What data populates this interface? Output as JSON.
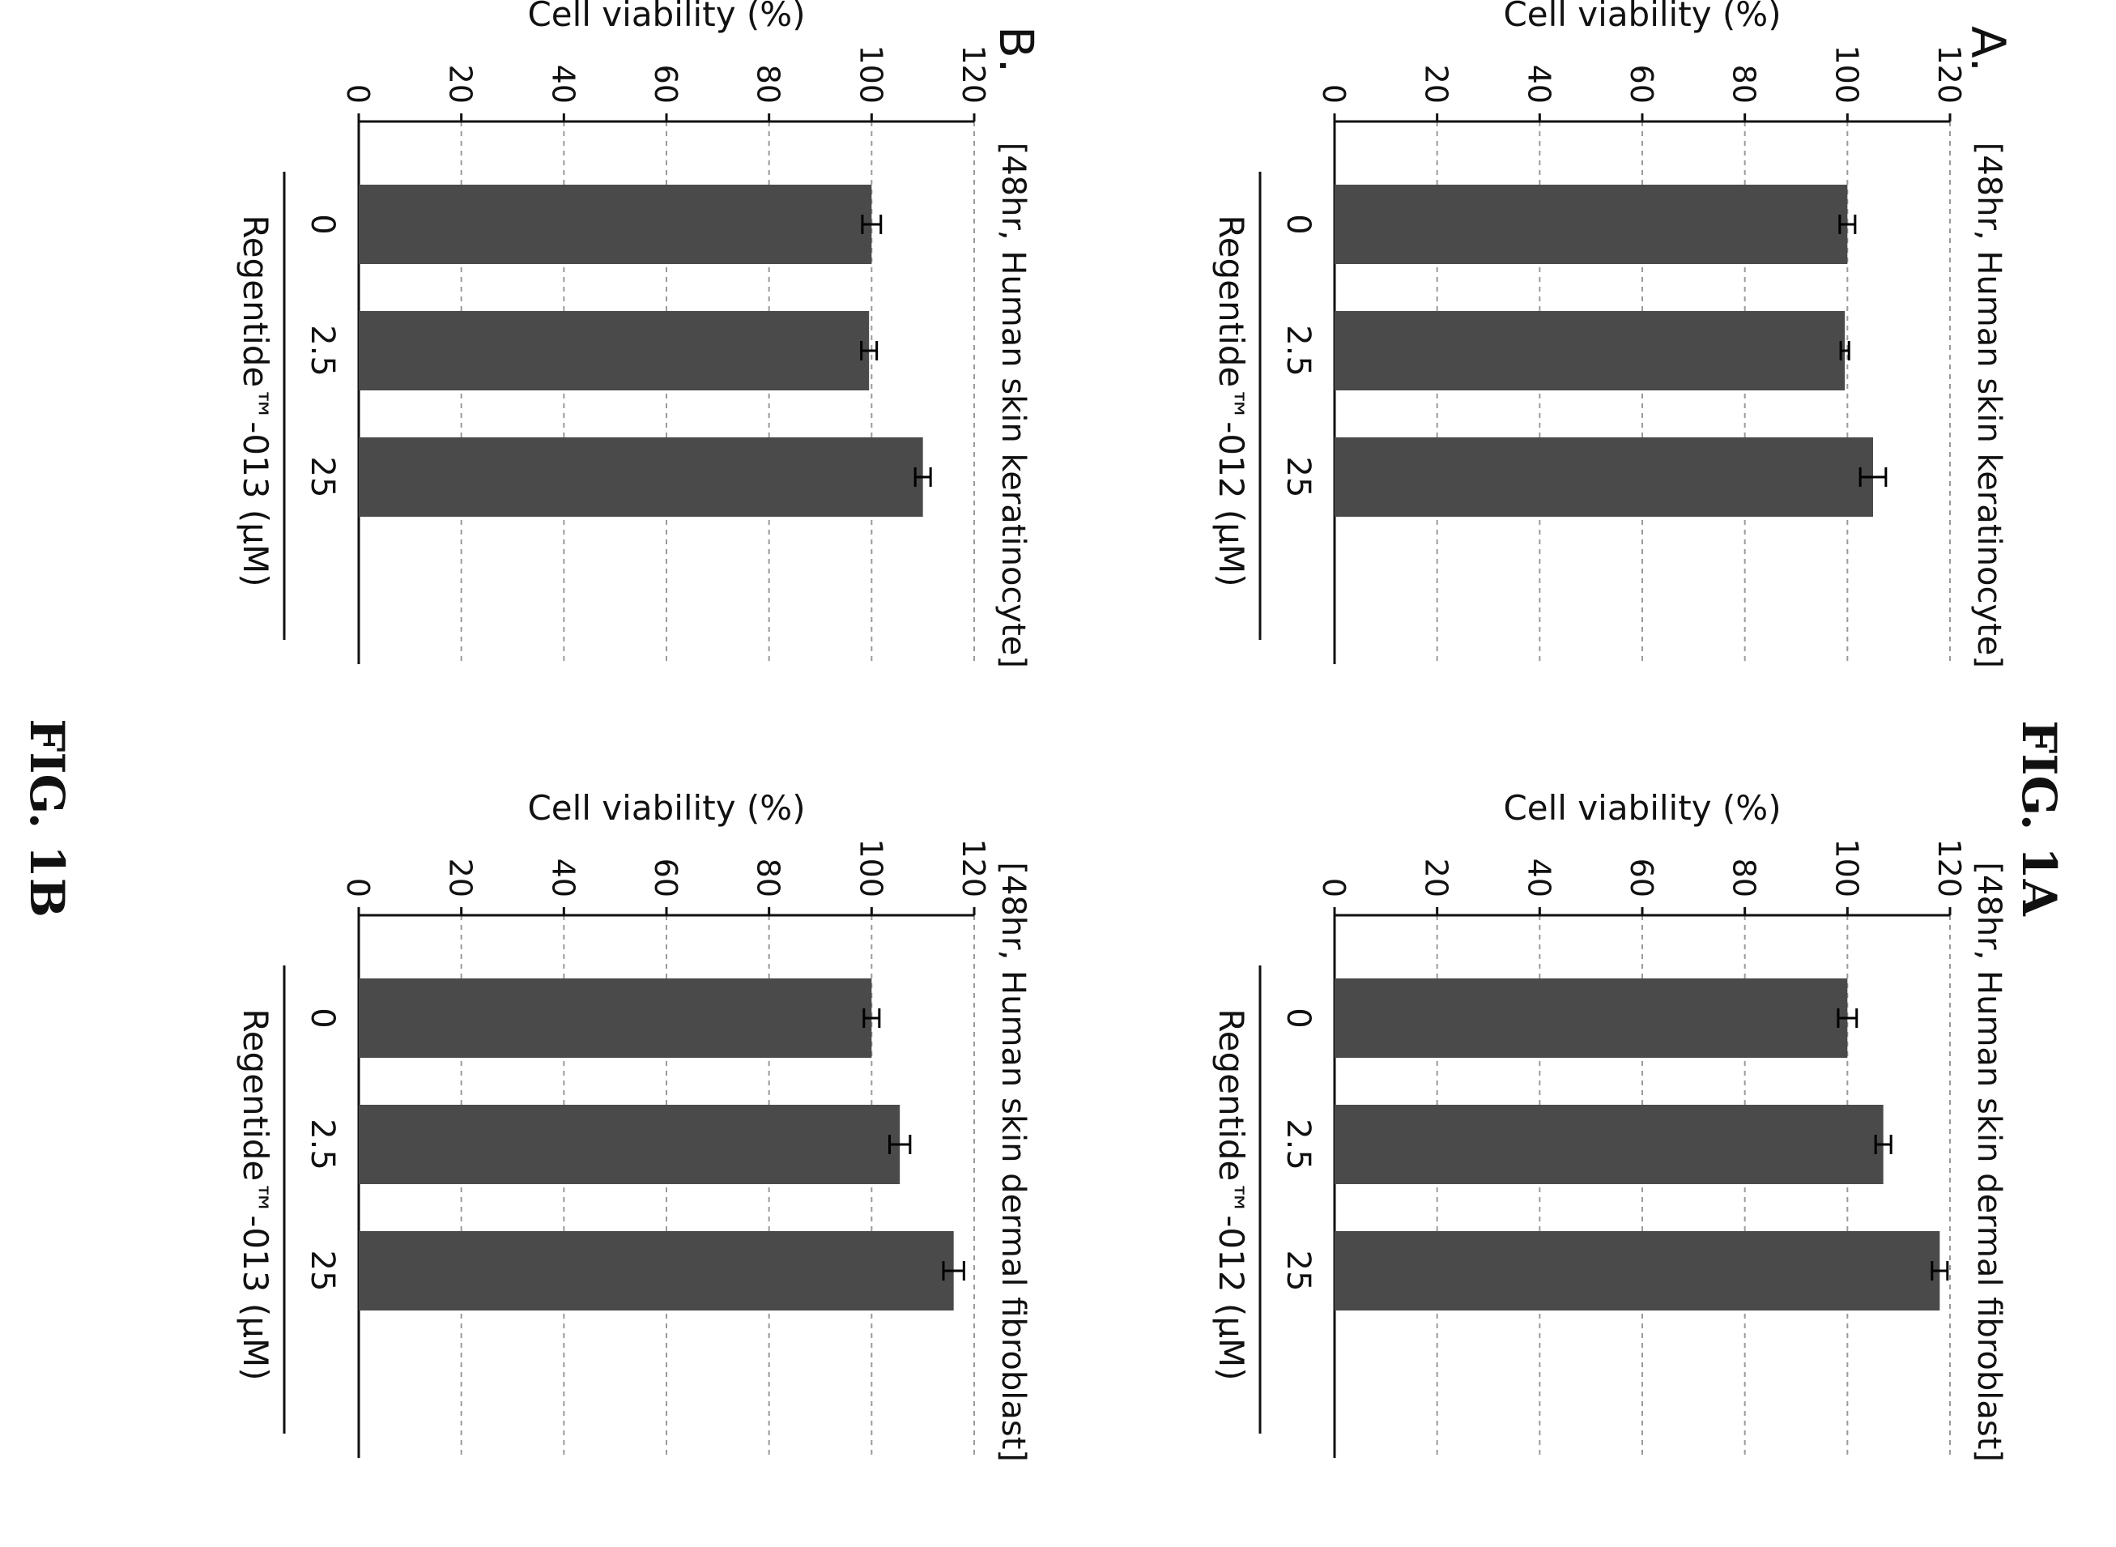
{
  "figure_labels": {
    "top": "FIG. 1A",
    "bottom": "FIG. 1B"
  },
  "panel_labels": {
    "a": "A.",
    "b": "B."
  },
  "colors": {
    "bar": "#4a4a4a",
    "axis": "#111111",
    "grid": "#9a9a9a"
  },
  "chart_data": [
    {
      "type": "bar",
      "panel": "A",
      "title": "[48hr, Human skin keratinocyte]",
      "ylabel": "Cell viability (%)",
      "xlabel": "Regentide™-012 (μM)",
      "categories": [
        "0",
        "2.5",
        "25"
      ],
      "values": [
        100,
        99.5,
        105
      ],
      "errors": [
        1.5,
        0.8,
        2.5
      ],
      "ylim": [
        0,
        120
      ],
      "yticks": [
        0,
        20,
        40,
        60,
        80,
        100,
        120
      ],
      "grid": true
    },
    {
      "type": "bar",
      "panel": "A",
      "title": "[48hr, Human skin dermal fibroblast]",
      "ylabel": "Cell viability (%)",
      "xlabel": "Regentide™-012 (μM)",
      "categories": [
        "0",
        "2.5",
        "25"
      ],
      "values": [
        100,
        107,
        118
      ],
      "errors": [
        1.8,
        1.5,
        1.5
      ],
      "ylim": [
        0,
        120
      ],
      "yticks": [
        0,
        20,
        40,
        60,
        80,
        100,
        120
      ],
      "grid": true
    },
    {
      "type": "bar",
      "panel": "B",
      "title": "[48hr, Human skin keratinocyte]",
      "ylabel": "Cell viability (%)",
      "xlabel": "Regentide™-013 (μM)",
      "categories": [
        "0",
        "2.5",
        "25"
      ],
      "values": [
        100,
        99.5,
        110
      ],
      "errors": [
        1.8,
        1.5,
        1.5
      ],
      "ylim": [
        0,
        120
      ],
      "yticks": [
        0,
        20,
        40,
        60,
        80,
        100,
        120
      ],
      "grid": true
    },
    {
      "type": "bar",
      "panel": "B",
      "title": "[48hr, Human skin dermal fibroblast]",
      "ylabel": "Cell viability (%)",
      "xlabel": "Regentide™-013 (μM)",
      "categories": [
        "0",
        "2.5",
        "25"
      ],
      "values": [
        100,
        105.5,
        116
      ],
      "errors": [
        1.5,
        2.0,
        2.0
      ],
      "ylim": [
        0,
        120
      ],
      "yticks": [
        0,
        20,
        40,
        60,
        80,
        100,
        120
      ],
      "grid": true
    }
  ]
}
